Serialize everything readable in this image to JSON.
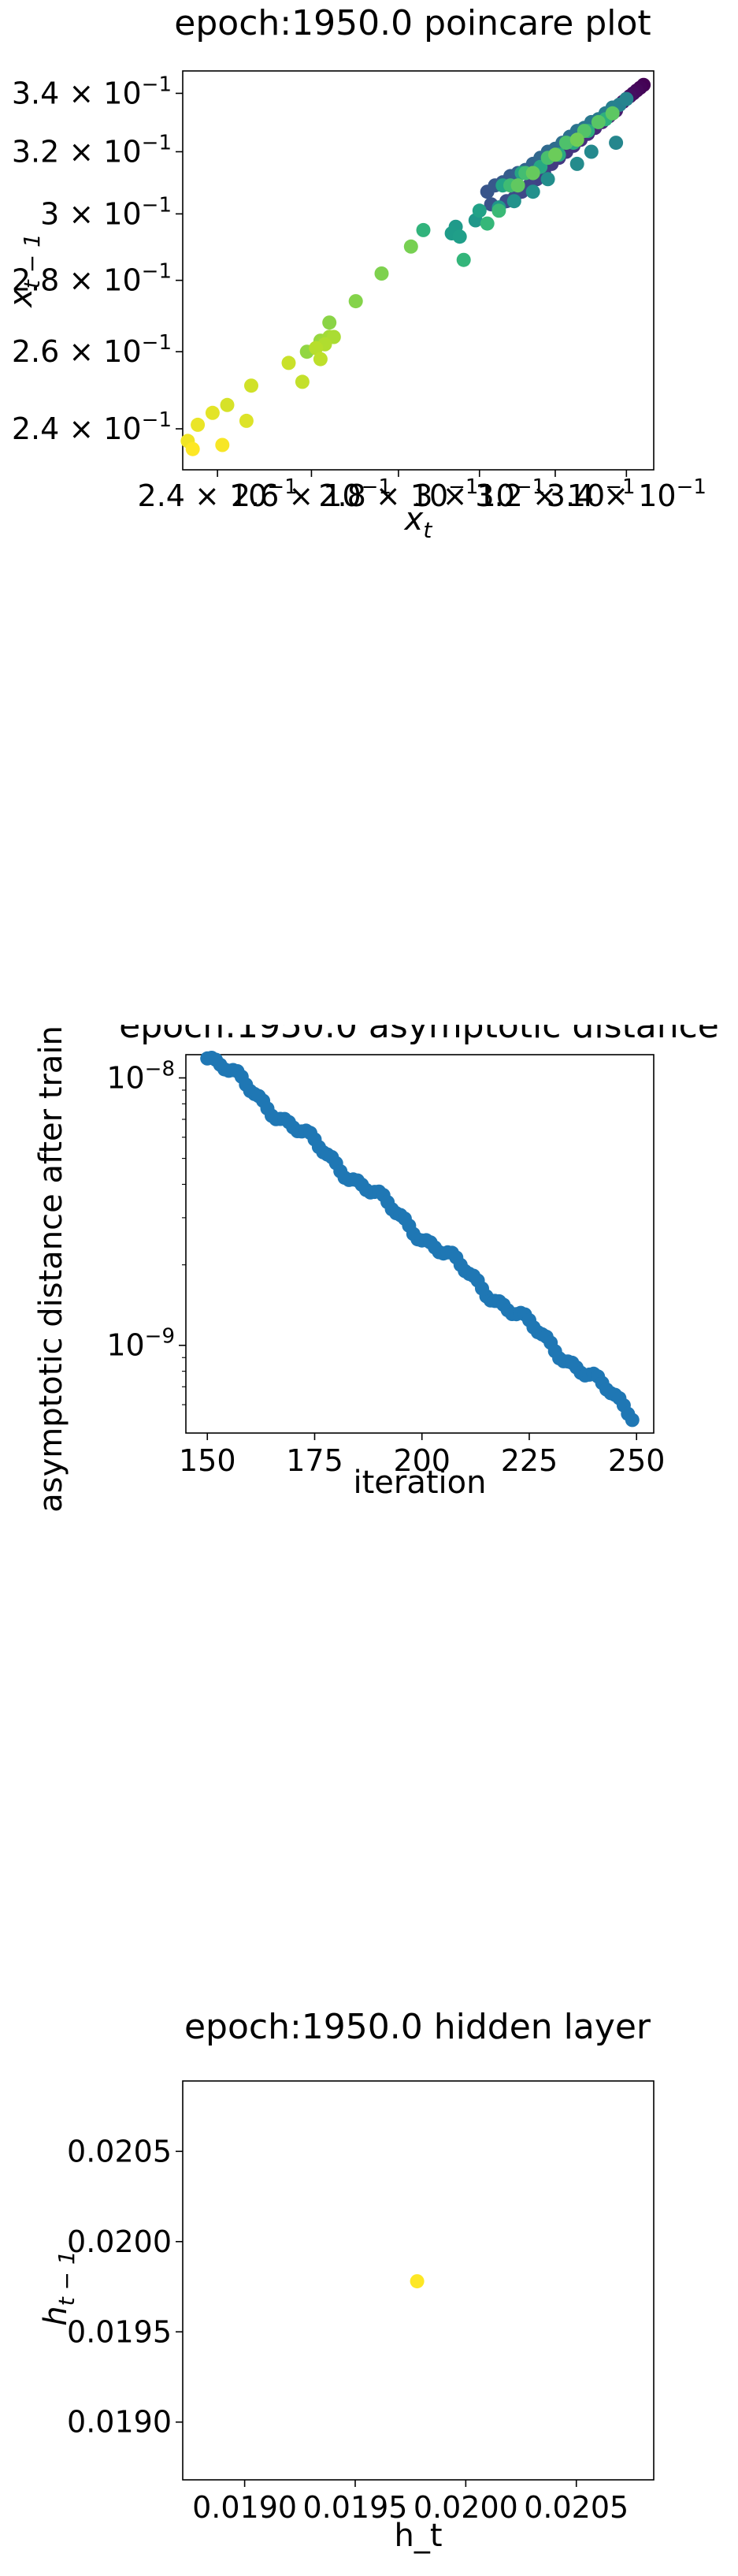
{
  "chart_data": [
    {
      "type": "scatter",
      "title": "epoch:1950.0 poincare plot",
      "xlabel": "x_t",
      "ylabel": "x_{t-1}",
      "xscale": "log",
      "yscale": "log",
      "xlim": [
        0.233,
        0.348
      ],
      "ylim": [
        0.23,
        0.348
      ],
      "xticks": [
        {
          "value": 0.24,
          "label": "2.4 × 10^{-1}",
          "mant": "2.4 × 10",
          "exp": "−1"
        },
        {
          "value": 0.26,
          "label": "2.6 × 10^{-1}",
          "mant": "2.6 × 10",
          "exp": "−1"
        },
        {
          "value": 0.28,
          "label": "2.8 × 10^{-1}",
          "mant": "2.8 × 10",
          "exp": "−1"
        },
        {
          "value": 0.3,
          "label": "3 × 10^{-1}",
          "mant": "3 × 10",
          "exp": "−1"
        },
        {
          "value": 0.32,
          "label": "3.2 × 10^{-1}",
          "mant": "3.2 × 10",
          "exp": "−1"
        },
        {
          "value": 0.34,
          "label": "3.4 × 10^{-1}",
          "mant": "3.4 × 10",
          "exp": "−1"
        }
      ],
      "yticks": [
        {
          "value": 0.24,
          "label": "2.4 × 10^{-1}",
          "mant": "2.4 × 10",
          "exp": "−1"
        },
        {
          "value": 0.26,
          "label": "2.6 × 10^{-1}",
          "mant": "2.6 × 10",
          "exp": "−1"
        },
        {
          "value": 0.28,
          "label": "2.8 × 10^{-1}",
          "mant": "2.8 × 10",
          "exp": "−1"
        },
        {
          "value": 0.3,
          "label": "3 × 10^{-1}",
          "mant": "3 × 10",
          "exp": "−1"
        },
        {
          "value": 0.32,
          "label": "3.2 × 10^{-1}",
          "mant": "3.2 × 10",
          "exp": "−1"
        },
        {
          "value": 0.34,
          "label": "3.4 × 10^{-1}",
          "mant": "3.4 × 10",
          "exp": "−1"
        }
      ],
      "colormap": "viridis",
      "color_order": "time (purple = early, yellow = late)",
      "points": [
        [
          0.345,
          0.343
        ],
        [
          0.344,
          0.342
        ],
        [
          0.343,
          0.341
        ],
        [
          0.342,
          0.34
        ],
        [
          0.341,
          0.339
        ],
        [
          0.34,
          0.338
        ],
        [
          0.339,
          0.337
        ],
        [
          0.338,
          0.336
        ],
        [
          0.337,
          0.334
        ],
        [
          0.336,
          0.333
        ],
        [
          0.335,
          0.332
        ],
        [
          0.333,
          0.33
        ],
        [
          0.331,
          0.328
        ],
        [
          0.329,
          0.326
        ],
        [
          0.327,
          0.324
        ],
        [
          0.325,
          0.322
        ],
        [
          0.323,
          0.32
        ],
        [
          0.321,
          0.318
        ],
        [
          0.319,
          0.316
        ],
        [
          0.317,
          0.313
        ],
        [
          0.315,
          0.311
        ],
        [
          0.313,
          0.309
        ],
        [
          0.311,
          0.307
        ],
        [
          0.309,
          0.305
        ],
        [
          0.307,
          0.304
        ],
        [
          0.305,
          0.302
        ],
        [
          0.303,
          0.303
        ],
        [
          0.302,
          0.307
        ],
        [
          0.304,
          0.309
        ],
        [
          0.306,
          0.31
        ],
        [
          0.308,
          0.312
        ],
        [
          0.31,
          0.313
        ],
        [
          0.312,
          0.314
        ],
        [
          0.314,
          0.316
        ],
        [
          0.316,
          0.318
        ],
        [
          0.318,
          0.32
        ],
        [
          0.32,
          0.321
        ],
        [
          0.322,
          0.323
        ],
        [
          0.324,
          0.325
        ],
        [
          0.326,
          0.327
        ],
        [
          0.328,
          0.328
        ],
        [
          0.33,
          0.33
        ],
        [
          0.332,
          0.331
        ],
        [
          0.334,
          0.333
        ],
        [
          0.336,
          0.335
        ],
        [
          0.338,
          0.336
        ],
        [
          0.34,
          0.338
        ],
        [
          0.337,
          0.323
        ],
        [
          0.33,
          0.32
        ],
        [
          0.326,
          0.316
        ],
        [
          0.318,
          0.311
        ],
        [
          0.314,
          0.307
        ],
        [
          0.309,
          0.304
        ],
        [
          0.305,
          0.302
        ],
        [
          0.299,
          0.298
        ],
        [
          0.294,
          0.296
        ],
        [
          0.293,
          0.294
        ],
        [
          0.295,
          0.293
        ],
        [
          0.3,
          0.301
        ],
        [
          0.306,
          0.309
        ],
        [
          0.311,
          0.313
        ],
        [
          0.316,
          0.315
        ],
        [
          0.321,
          0.319
        ],
        [
          0.325,
          0.323
        ],
        [
          0.329,
          0.327
        ],
        [
          0.334,
          0.331
        ],
        [
          0.286,
          0.295
        ],
        [
          0.296,
          0.286
        ],
        [
          0.302,
          0.297
        ],
        [
          0.305,
          0.301
        ],
        [
          0.308,
          0.309
        ],
        [
          0.312,
          0.313
        ],
        [
          0.318,
          0.318
        ],
        [
          0.323,
          0.323
        ],
        [
          0.328,
          0.327
        ],
        [
          0.332,
          0.33
        ],
        [
          0.336,
          0.333
        ],
        [
          0.31,
          0.309
        ],
        [
          0.314,
          0.313
        ],
        [
          0.32,
          0.319
        ],
        [
          0.326,
          0.324
        ],
        [
          0.283,
          0.29
        ],
        [
          0.276,
          0.282
        ],
        [
          0.27,
          0.274
        ],
        [
          0.264,
          0.268
        ],
        [
          0.259,
          0.26
        ],
        [
          0.262,
          0.263
        ],
        [
          0.263,
          0.263
        ],
        [
          0.264,
          0.264
        ],
        [
          0.265,
          0.264
        ],
        [
          0.263,
          0.262
        ],
        [
          0.261,
          0.261
        ],
        [
          0.262,
          0.258
        ],
        [
          0.258,
          0.252
        ],
        [
          0.255,
          0.257
        ],
        [
          0.247,
          0.251
        ],
        [
          0.242,
          0.246
        ],
        [
          0.246,
          0.242
        ],
        [
          0.239,
          0.244
        ],
        [
          0.236,
          0.241
        ],
        [
          0.234,
          0.237
        ],
        [
          0.241,
          0.236
        ],
        [
          0.235,
          0.235
        ]
      ]
    },
    {
      "type": "scatter",
      "title": "epoch:1950.0 asymptotic distance",
      "xlabel": "iteration",
      "ylabel": "asymptotic distance after training",
      "yscale": "log",
      "xlim": [
        145,
        254
      ],
      "ylim": [
        4.7e-10,
        1.38e-08
      ],
      "xticks": [
        {
          "value": 150,
          "label": "150"
        },
        {
          "value": 175,
          "label": "175"
        },
        {
          "value": 200,
          "label": "200"
        },
        {
          "value": 225,
          "label": "225"
        },
        {
          "value": 250,
          "label": "250"
        }
      ],
      "yticks": [
        {
          "value": 1e-08,
          "label": "10^{-8}",
          "mant": "10",
          "exp": "−8"
        },
        {
          "value": 1e-09,
          "label": "10^{-9}",
          "mant": "10",
          "exp": "−9"
        }
      ],
      "color": "#1f77b4",
      "series": [
        {
          "x_start": 150,
          "x_end": 249,
          "step": 1,
          "y_start": 1.23e-08,
          "y_end": 5.6e-10,
          "description_values_by_iteration": {
            "150": 1.23e-08,
            "160": 8.2e-09,
            "175": 5e-09,
            "190": 3.1e-09,
            "200": 2.1e-09,
            "215": 1.3e-09,
            "225": 1e-09,
            "240": 6.8e-10,
            "249": 5.6e-10
          }
        }
      ]
    },
    {
      "type": "scatter",
      "title": "epoch:1950.0 hidden layer",
      "xlabel": "h_t",
      "ylabel": "h_{t-1}",
      "xlim": [
        0.01872,
        0.02085
      ],
      "ylim": [
        0.01868,
        0.02089
      ],
      "xticks": [
        {
          "value": 0.019,
          "label": "0.0190"
        },
        {
          "value": 0.0195,
          "label": "0.0195"
        },
        {
          "value": 0.02,
          "label": "0.0200"
        },
        {
          "value": 0.0205,
          "label": "0.0205"
        }
      ],
      "yticks": [
        {
          "value": 0.019,
          "label": "0.0190"
        },
        {
          "value": 0.0195,
          "label": "0.0195"
        },
        {
          "value": 0.02,
          "label": "0.0200"
        },
        {
          "value": 0.0205,
          "label": "0.0205"
        }
      ],
      "color": "#fde725",
      "points": [
        [
          0.01978,
          0.01978
        ]
      ]
    }
  ]
}
